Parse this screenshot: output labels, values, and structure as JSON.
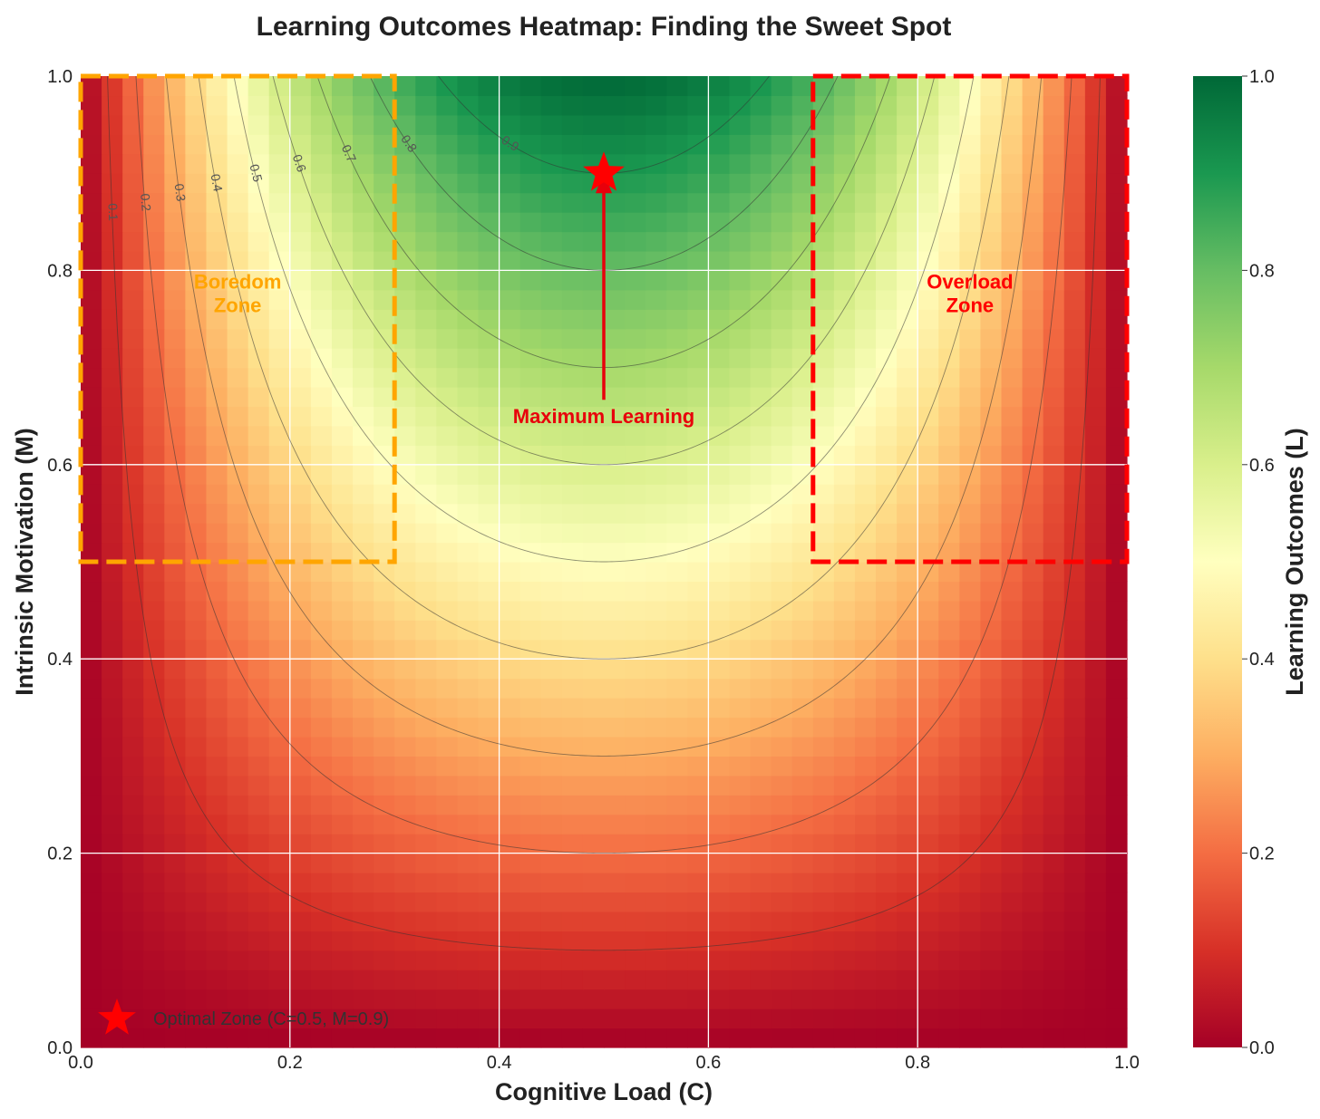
{
  "chart_data": {
    "type": "heatmap",
    "title": "Learning Outcomes Heatmap: Finding the Sweet Spot",
    "xlabel": "Cognitive Load (C)",
    "ylabel": "Intrinsic Motivation (M)",
    "colorbar_label": "Learning Outcomes (L)",
    "xlim": [
      0.0,
      1.0
    ],
    "ylim": [
      0.0,
      1.0
    ],
    "clim": [
      0.0,
      1.0
    ],
    "xticks": [
      "0.0",
      "0.2",
      "0.4",
      "0.6",
      "0.8",
      "1.0"
    ],
    "yticks": [
      "0.0",
      "0.2",
      "0.4",
      "0.6",
      "0.8",
      "1.0"
    ],
    "colorbar_ticks": [
      "0.0",
      "0.2",
      "0.4",
      "0.6",
      "0.8",
      "1.0"
    ],
    "colormap": "RdYlGn",
    "colormap_stops": [
      "#a50026",
      "#d73027",
      "#f46d43",
      "#fdae61",
      "#fee08b",
      "#ffffbf",
      "#d9ef8b",
      "#a6d96a",
      "#66bd63",
      "#1a9850",
      "#006837"
    ],
    "grid": true,
    "grid_resolution": 50,
    "surface": "L = M * (1 - 4*(C - 0.5)^2)",
    "contour_levels": [
      0.1,
      0.2,
      0.3,
      0.4,
      0.5,
      0.6,
      0.7,
      0.8,
      0.9
    ],
    "contour_labels": [
      "0.1",
      "0.2",
      "0.3",
      "0.4",
      "0.5",
      "0.6",
      "0.7",
      "0.8",
      "0.9"
    ],
    "optimal_point": {
      "x": 0.5,
      "y": 0.9,
      "marker": "star",
      "color": "#ff0000"
    },
    "annotations": [
      {
        "text": "Maximum Learning",
        "points_to": [
          0.5,
          0.9
        ],
        "text_at": [
          0.5,
          0.65
        ],
        "color": "#e8000b"
      }
    ],
    "zones": [
      {
        "name": "boredom",
        "label_lines": [
          "Boredom",
          "Zone"
        ],
        "x_range": [
          0.0,
          0.3
        ],
        "y_range": [
          0.5,
          1.0
        ],
        "color": "#ffa500"
      },
      {
        "name": "overload",
        "label_lines": [
          "Overload",
          "Zone"
        ],
        "x_range": [
          0.7,
          1.0
        ],
        "y_range": [
          0.5,
          1.0
        ],
        "color": "#ff0000"
      }
    ],
    "legend": {
      "placement": "lower-left",
      "entries": [
        {
          "label": "Optimal Zone (C=0.5, M=0.9)",
          "marker": "star",
          "color": "#ff0000"
        }
      ]
    }
  }
}
